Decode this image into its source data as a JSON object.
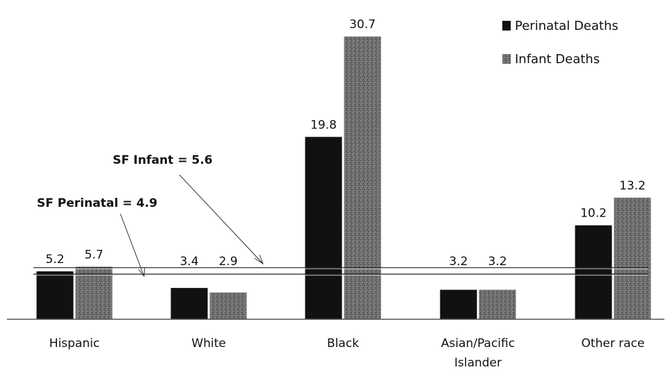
{
  "chart_data": {
    "type": "bar",
    "categories": [
      "Hispanic",
      "White",
      "Black",
      "Asian/Pacific Islander",
      "Other race"
    ],
    "category_lines": [
      [
        "Hispanic"
      ],
      [
        "White"
      ],
      [
        "Black"
      ],
      [
        "Asian/Pacific",
        "Islander"
      ],
      [
        "Other race"
      ]
    ],
    "series": [
      {
        "name": "Perinatal Deaths",
        "values": [
          5.2,
          3.4,
          19.8,
          3.2,
          10.2
        ],
        "color": "#111111"
      },
      {
        "name": "Infant Deaths",
        "values": [
          5.7,
          2.9,
          30.7,
          3.2,
          13.2
        ],
        "color": "#6e6e6e"
      }
    ],
    "ylim": [
      0,
      32
    ],
    "grid": false,
    "legend_position": "top-right",
    "reference_lines": [
      {
        "label": "SF Infant = 5.6",
        "value": 5.6
      },
      {
        "label": "SF Perinatal = 4.9",
        "value": 4.9
      }
    ]
  }
}
